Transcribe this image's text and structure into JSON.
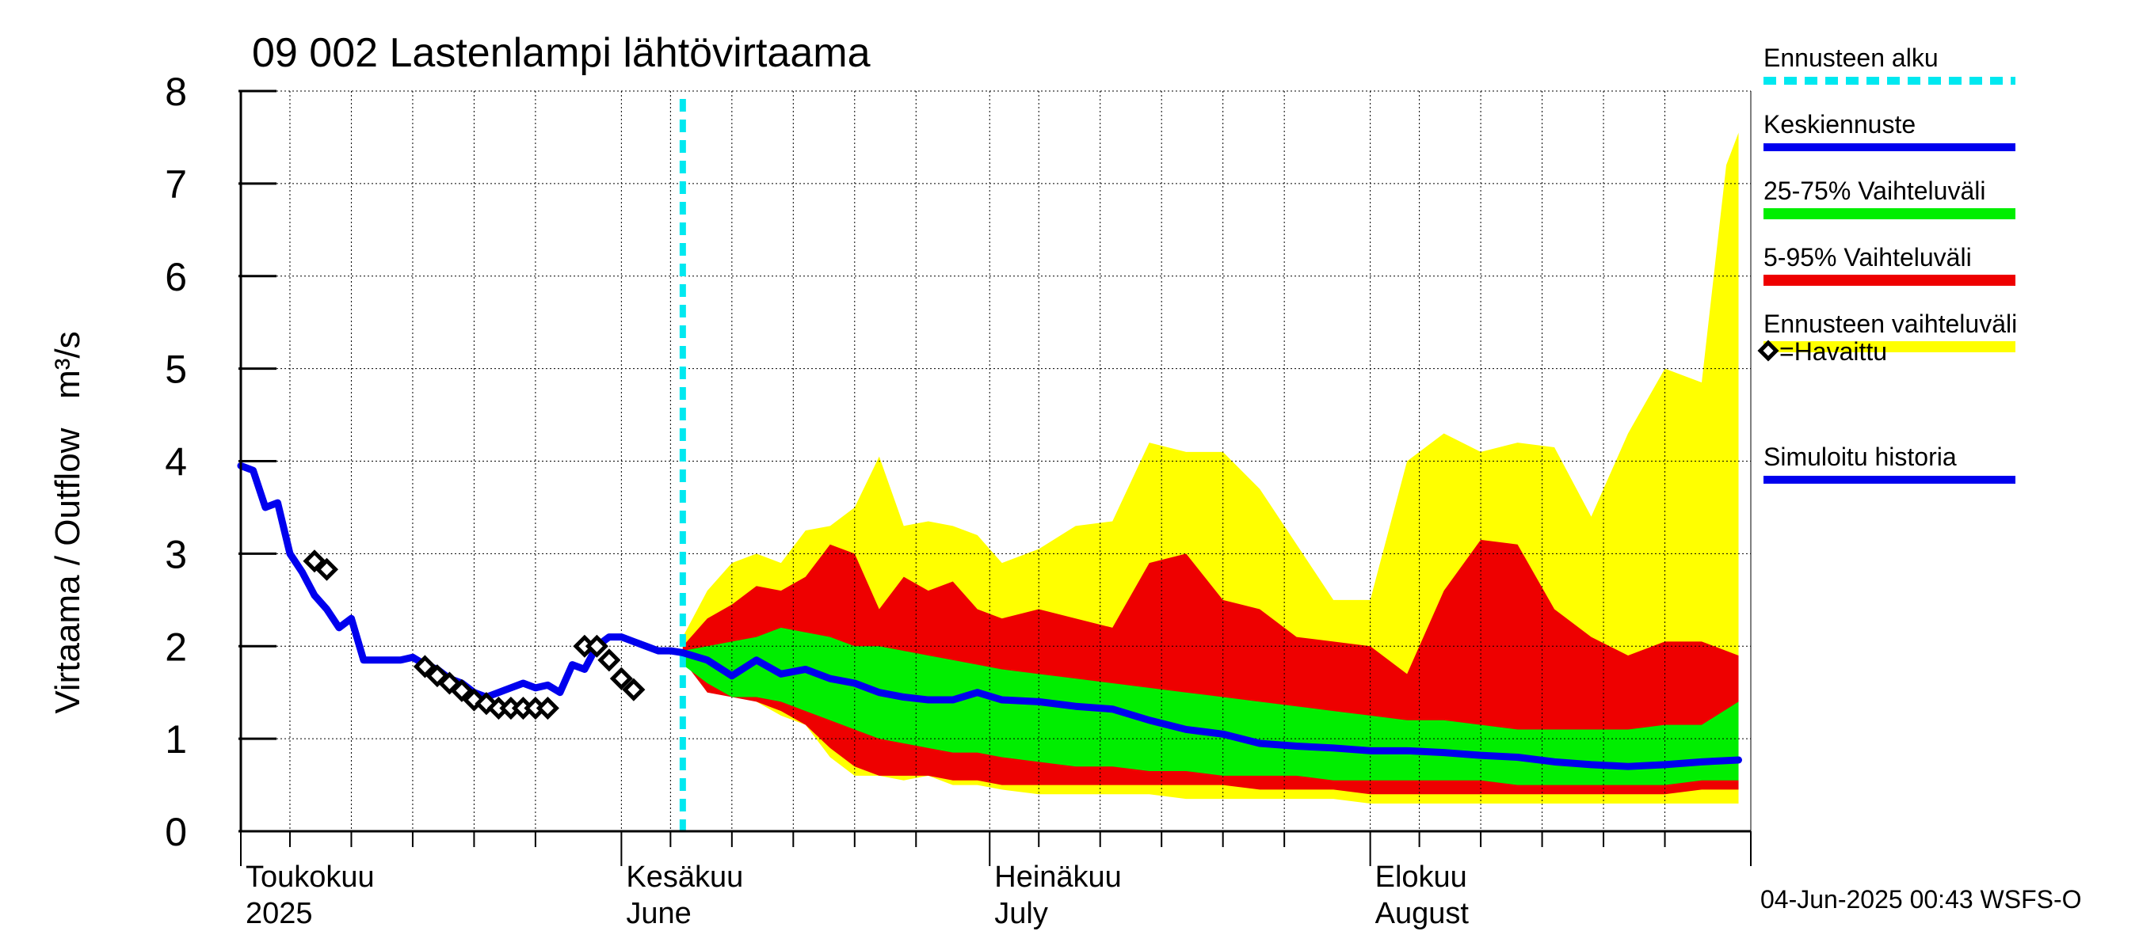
{
  "chart_data": {
    "type": "area",
    "title": "09 002 Lastenlampi lähtövirtaama",
    "ylabel": "Virtaama / Outflow   m³/s",
    "ylim": [
      0,
      8
    ],
    "yticks": [
      0,
      1,
      2,
      3,
      4,
      5,
      6,
      7,
      8
    ],
    "x_range": [
      "2025-05-01",
      "2025-08-31"
    ],
    "months": [
      {
        "label_fi": "Toukokuu",
        "label_en": "2025",
        "start": "2025-05-01"
      },
      {
        "label_fi": "Kesäkuu",
        "label_en": "June",
        "start": "2025-06-01"
      },
      {
        "label_fi": "Heinäkuu",
        "label_en": "July",
        "start": "2025-07-01"
      },
      {
        "label_fi": "Elokuu",
        "label_en": "August",
        "start": "2025-08-01"
      }
    ],
    "forecast_start": "2025-06-06",
    "footer": "04-Jun-2025 00:43 WSFS-O",
    "legend": [
      {
        "label": "Ennusteen alku",
        "color": "#00e8f0",
        "style": "dashed"
      },
      {
        "label": "Keskiennuste",
        "color": "#0000ee",
        "style": "line"
      },
      {
        "label": "25-75% Vaihteluväli",
        "color": "#00ee00",
        "style": "band"
      },
      {
        "label": "5-95% Vaihteluväli",
        "color": "#ee0000",
        "style": "band"
      },
      {
        "label": "Ennusteen vaihteluväli",
        "color": "#ffff00",
        "style": "band"
      },
      {
        "label": "=Havaittu",
        "color": "#000000",
        "style": "marker"
      },
      {
        "label": "Simuloitu historia",
        "color": "#0000ee",
        "style": "line"
      }
    ],
    "series": [
      {
        "name": "Simuloitu historia",
        "color": "#0000ee",
        "points": [
          [
            "2025-05-01",
            3.95
          ],
          [
            "2025-05-02",
            3.9
          ],
          [
            "2025-05-03",
            3.5
          ],
          [
            "2025-05-04",
            3.55
          ],
          [
            "2025-05-05",
            3.0
          ],
          [
            "2025-05-06",
            2.8
          ],
          [
            "2025-05-07",
            2.55
          ],
          [
            "2025-05-08",
            2.4
          ],
          [
            "2025-05-09",
            2.2
          ],
          [
            "2025-05-10",
            2.3
          ],
          [
            "2025-05-11",
            1.85
          ],
          [
            "2025-05-12",
            1.85
          ],
          [
            "2025-05-13",
            1.85
          ],
          [
            "2025-05-14",
            1.85
          ],
          [
            "2025-05-15",
            1.88
          ],
          [
            "2025-05-16",
            1.8
          ],
          [
            "2025-05-17",
            1.75
          ],
          [
            "2025-05-18",
            1.65
          ],
          [
            "2025-05-19",
            1.6
          ],
          [
            "2025-05-20",
            1.5
          ],
          [
            "2025-05-21",
            1.45
          ],
          [
            "2025-05-22",
            1.5
          ],
          [
            "2025-05-23",
            1.55
          ],
          [
            "2025-05-24",
            1.6
          ],
          [
            "2025-05-25",
            1.55
          ],
          [
            "2025-05-26",
            1.58
          ],
          [
            "2025-05-27",
            1.5
          ],
          [
            "2025-05-28",
            1.8
          ],
          [
            "2025-05-29",
            1.75
          ],
          [
            "2025-05-30",
            2.0
          ],
          [
            "2025-05-31",
            2.1
          ],
          [
            "2025-06-01",
            2.1
          ],
          [
            "2025-06-02",
            2.05
          ],
          [
            "2025-06-03",
            2.0
          ],
          [
            "2025-06-04",
            1.95
          ],
          [
            "2025-06-05",
            1.95
          ],
          [
            "2025-06-06",
            1.93
          ]
        ]
      },
      {
        "name": "=Havaittu",
        "color": "#000000",
        "points": [
          [
            "2025-05-07",
            2.92
          ],
          [
            "2025-05-08",
            2.83
          ],
          [
            "2025-05-16",
            1.78
          ],
          [
            "2025-05-17",
            1.68
          ],
          [
            "2025-05-18",
            1.6
          ],
          [
            "2025-05-19",
            1.52
          ],
          [
            "2025-05-20",
            1.42
          ],
          [
            "2025-05-21",
            1.38
          ],
          [
            "2025-05-22",
            1.33
          ],
          [
            "2025-05-23",
            1.33
          ],
          [
            "2025-05-24",
            1.33
          ],
          [
            "2025-05-25",
            1.33
          ],
          [
            "2025-05-26",
            1.33
          ],
          [
            "2025-05-29",
            2.0
          ],
          [
            "2025-05-30",
            2.0
          ],
          [
            "2025-05-31",
            1.85
          ],
          [
            "2025-06-01",
            1.65
          ],
          [
            "2025-06-02",
            1.53
          ]
        ]
      },
      {
        "name": "Keskiennuste",
        "color": "#0000ee",
        "points": [
          [
            "2025-06-06",
            1.93
          ],
          [
            "2025-06-08",
            1.85
          ],
          [
            "2025-06-10",
            1.68
          ],
          [
            "2025-06-12",
            1.85
          ],
          [
            "2025-06-14",
            1.7
          ],
          [
            "2025-06-16",
            1.75
          ],
          [
            "2025-06-18",
            1.65
          ],
          [
            "2025-06-20",
            1.6
          ],
          [
            "2025-06-22",
            1.5
          ],
          [
            "2025-06-24",
            1.45
          ],
          [
            "2025-06-26",
            1.42
          ],
          [
            "2025-06-28",
            1.42
          ],
          [
            "2025-06-30",
            1.5
          ],
          [
            "2025-07-02",
            1.42
          ],
          [
            "2025-07-05",
            1.4
          ],
          [
            "2025-07-08",
            1.35
          ],
          [
            "2025-07-11",
            1.32
          ],
          [
            "2025-07-14",
            1.2
          ],
          [
            "2025-07-17",
            1.1
          ],
          [
            "2025-07-20",
            1.05
          ],
          [
            "2025-07-23",
            0.95
          ],
          [
            "2025-07-26",
            0.92
          ],
          [
            "2025-07-29",
            0.9
          ],
          [
            "2025-08-01",
            0.87
          ],
          [
            "2025-08-04",
            0.87
          ],
          [
            "2025-08-07",
            0.85
          ],
          [
            "2025-08-10",
            0.82
          ],
          [
            "2025-08-13",
            0.8
          ],
          [
            "2025-08-16",
            0.75
          ],
          [
            "2025-08-19",
            0.72
          ],
          [
            "2025-08-22",
            0.7
          ],
          [
            "2025-08-25",
            0.72
          ],
          [
            "2025-08-28",
            0.75
          ],
          [
            "2025-08-31",
            0.77
          ]
        ]
      }
    ],
    "bands": [
      {
        "name": "Ennusteen vaihteluväli",
        "color": "#ffff00",
        "points": [
          [
            "2025-06-06",
            1.9,
            2.1
          ],
          [
            "2025-06-08",
            1.5,
            2.6
          ],
          [
            "2025-06-10",
            1.5,
            2.9
          ],
          [
            "2025-06-12",
            1.4,
            3.0
          ],
          [
            "2025-06-14",
            1.25,
            2.9
          ],
          [
            "2025-06-16",
            1.15,
            3.25
          ],
          [
            "2025-06-18",
            0.8,
            3.3
          ],
          [
            "2025-06-20",
            0.6,
            3.5
          ],
          [
            "2025-06-22",
            0.6,
            4.05
          ],
          [
            "2025-06-24",
            0.55,
            3.3
          ],
          [
            "2025-06-26",
            0.6,
            3.35
          ],
          [
            "2025-06-28",
            0.5,
            3.3
          ],
          [
            "2025-06-30",
            0.5,
            3.2
          ],
          [
            "2025-07-02",
            0.45,
            2.9
          ],
          [
            "2025-07-05",
            0.4,
            3.05
          ],
          [
            "2025-07-08",
            0.4,
            3.3
          ],
          [
            "2025-07-11",
            0.4,
            3.35
          ],
          [
            "2025-07-14",
            0.4,
            4.2
          ],
          [
            "2025-07-17",
            0.35,
            4.1
          ],
          [
            "2025-07-20",
            0.35,
            4.1
          ],
          [
            "2025-07-23",
            0.35,
            3.7
          ],
          [
            "2025-07-26",
            0.35,
            3.1
          ],
          [
            "2025-07-29",
            0.35,
            2.5
          ],
          [
            "2025-08-01",
            0.3,
            2.5
          ],
          [
            "2025-08-04",
            0.3,
            4.0
          ],
          [
            "2025-08-07",
            0.3,
            4.3
          ],
          [
            "2025-08-10",
            0.3,
            4.1
          ],
          [
            "2025-08-13",
            0.3,
            4.2
          ],
          [
            "2025-08-16",
            0.3,
            4.15
          ],
          [
            "2025-08-19",
            0.3,
            3.4
          ],
          [
            "2025-08-22",
            0.3,
            4.3
          ],
          [
            "2025-08-25",
            0.3,
            5.0
          ],
          [
            "2025-08-28",
            0.3,
            4.85
          ],
          [
            "2025-08-30",
            0.3,
            7.2
          ],
          [
            "2025-08-31",
            0.3,
            7.55
          ]
        ]
      },
      {
        "name": "5-95% Vaihteluväli",
        "color": "#ee0000",
        "points": [
          [
            "2025-06-06",
            1.85,
            2.0
          ],
          [
            "2025-06-08",
            1.5,
            2.3
          ],
          [
            "2025-06-10",
            1.45,
            2.45
          ],
          [
            "2025-06-12",
            1.4,
            2.65
          ],
          [
            "2025-06-14",
            1.3,
            2.6
          ],
          [
            "2025-06-16",
            1.15,
            2.75
          ],
          [
            "2025-06-18",
            0.9,
            3.1
          ],
          [
            "2025-06-20",
            0.7,
            3.0
          ],
          [
            "2025-06-22",
            0.6,
            2.4
          ],
          [
            "2025-06-24",
            0.6,
            2.75
          ],
          [
            "2025-06-26",
            0.6,
            2.6
          ],
          [
            "2025-06-28",
            0.55,
            2.7
          ],
          [
            "2025-06-30",
            0.55,
            2.4
          ],
          [
            "2025-07-02",
            0.5,
            2.3
          ],
          [
            "2025-07-05",
            0.5,
            2.4
          ],
          [
            "2025-07-08",
            0.5,
            2.3
          ],
          [
            "2025-07-11",
            0.5,
            2.2
          ],
          [
            "2025-07-14",
            0.5,
            2.9
          ],
          [
            "2025-07-17",
            0.5,
            3.0
          ],
          [
            "2025-07-20",
            0.5,
            2.5
          ],
          [
            "2025-07-23",
            0.45,
            2.4
          ],
          [
            "2025-07-26",
            0.45,
            2.1
          ],
          [
            "2025-07-29",
            0.45,
            2.05
          ],
          [
            "2025-08-01",
            0.4,
            2.0
          ],
          [
            "2025-08-04",
            0.4,
            1.7
          ],
          [
            "2025-08-07",
            0.4,
            2.6
          ],
          [
            "2025-08-10",
            0.4,
            3.15
          ],
          [
            "2025-08-13",
            0.4,
            3.1
          ],
          [
            "2025-08-16",
            0.4,
            2.4
          ],
          [
            "2025-08-19",
            0.4,
            2.1
          ],
          [
            "2025-08-22",
            0.4,
            1.9
          ],
          [
            "2025-08-25",
            0.4,
            2.05
          ],
          [
            "2025-08-28",
            0.45,
            2.05
          ],
          [
            "2025-08-31",
            0.45,
            1.9
          ]
        ]
      },
      {
        "name": "25-75% Vaihteluväli",
        "color": "#00ee00",
        "points": [
          [
            "2025-06-06",
            1.8,
            1.95
          ],
          [
            "2025-06-08",
            1.6,
            2.0
          ],
          [
            "2025-06-10",
            1.45,
            2.05
          ],
          [
            "2025-06-12",
            1.45,
            2.1
          ],
          [
            "2025-06-14",
            1.4,
            2.2
          ],
          [
            "2025-06-16",
            1.3,
            2.15
          ],
          [
            "2025-06-18",
            1.2,
            2.1
          ],
          [
            "2025-06-20",
            1.1,
            2.0
          ],
          [
            "2025-06-22",
            1.0,
            2.0
          ],
          [
            "2025-06-24",
            0.95,
            1.95
          ],
          [
            "2025-06-26",
            0.9,
            1.9
          ],
          [
            "2025-06-28",
            0.85,
            1.85
          ],
          [
            "2025-06-30",
            0.85,
            1.8
          ],
          [
            "2025-07-02",
            0.8,
            1.75
          ],
          [
            "2025-07-05",
            0.75,
            1.7
          ],
          [
            "2025-07-08",
            0.7,
            1.65
          ],
          [
            "2025-07-11",
            0.7,
            1.6
          ],
          [
            "2025-07-14",
            0.65,
            1.55
          ],
          [
            "2025-07-17",
            0.65,
            1.5
          ],
          [
            "2025-07-20",
            0.6,
            1.45
          ],
          [
            "2025-07-23",
            0.6,
            1.4
          ],
          [
            "2025-07-26",
            0.6,
            1.35
          ],
          [
            "2025-07-29",
            0.55,
            1.3
          ],
          [
            "2025-08-01",
            0.55,
            1.25
          ],
          [
            "2025-08-04",
            0.55,
            1.2
          ],
          [
            "2025-08-07",
            0.55,
            1.2
          ],
          [
            "2025-08-10",
            0.55,
            1.15
          ],
          [
            "2025-08-13",
            0.5,
            1.1
          ],
          [
            "2025-08-16",
            0.5,
            1.1
          ],
          [
            "2025-08-19",
            0.5,
            1.1
          ],
          [
            "2025-08-22",
            0.5,
            1.1
          ],
          [
            "2025-08-25",
            0.5,
            1.15
          ],
          [
            "2025-08-28",
            0.55,
            1.15
          ],
          [
            "2025-08-31",
            0.55,
            1.4
          ]
        ]
      }
    ]
  }
}
